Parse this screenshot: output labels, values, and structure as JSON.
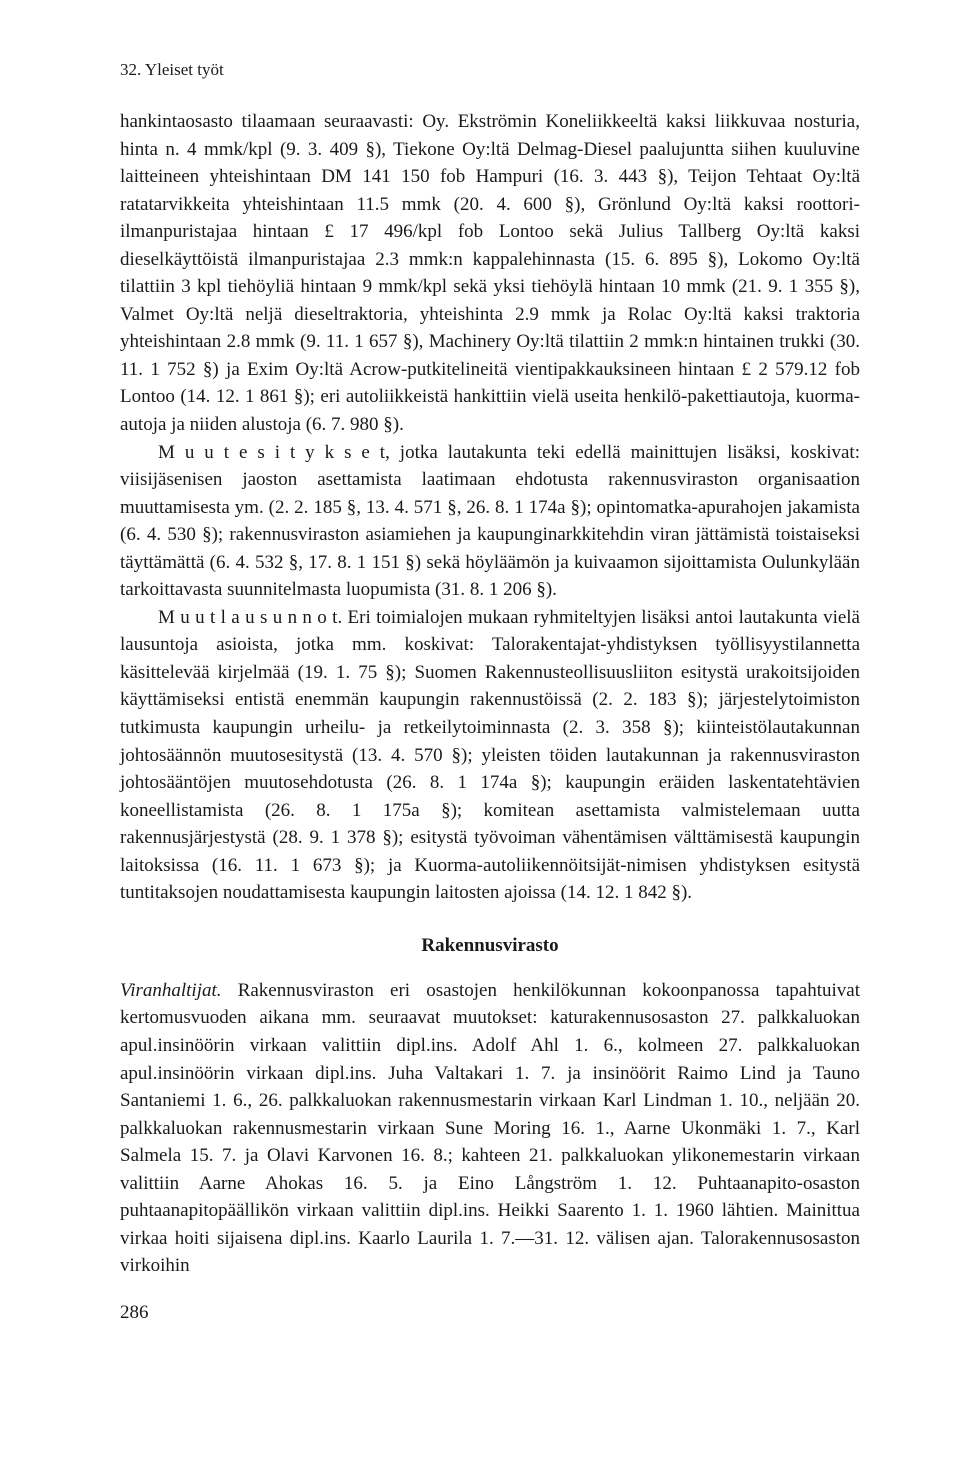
{
  "header": "32. Yleiset työt",
  "paragraphs": [
    "hankintaosasto tilaamaan seuraavasti: Oy. Ekströmin Koneliikkeeltä kaksi liikkuvaa nosturia, hinta n. 4 mmk/kpl (9. 3. 409 §), Tiekone Oy:ltä Delmag-Diesel paalujuntta siihen kuuluvine laitteineen yhteishintaan DM 141 150 fob Hampuri (16. 3. 443 §), Teijon Tehtaat Oy:ltä ratatarvikkeita yhteishintaan 11.5 mmk (20. 4. 600 §), Grönlund Oy:ltä kaksi roottori-ilmanpuristajaa hintaan £ 17 496/kpl fob Lontoo sekä Julius Tallberg Oy:ltä kaksi dieselkäyttöistä ilmanpuristajaa 2.3 mmk:n kappalehinnasta (15. 6. 895 §), Lokomo Oy:ltä tilattiin 3 kpl tiehöyliä hintaan 9 mmk/kpl sekä yksi tiehöylä hintaan 10 mmk (21. 9. 1 355 §), Valmet Oy:ltä neljä dieseltraktoria, yhteishinta 2.9 mmk ja Rolac Oy:ltä kaksi traktoria yhteishintaan 2.8 mmk (9. 11. 1 657 §), Machinery Oy:ltä tilattiin 2 mmk:n hintainen trukki (30. 11. 1 752 §) ja Exim Oy:ltä Acrow-putkitelineitä vientipakkauksineen hintaan £ 2 579.12 fob Lontoo (14. 12. 1 861 §); eri autoliikkeistä hankittiin vielä useita henkilö-pakettiautoja, kuorma-autoja ja niiden alustoja (6. 7. 980 §).",
    "M u u t  e s i t y k s e t, jotka lautakunta teki edellä mainittujen lisäksi, koskivat: viisijäsenisen jaoston asettamista laatimaan ehdotusta rakennusviraston organisaation muuttamisesta ym. (2. 2. 185 §, 13. 4. 571 §, 26. 8. 1 174a §); opintomatka-apurahojen jakamista (6. 4. 530 §); rakennusviraston asiamiehen ja kaupunginarkkitehdin viran jättämistä toistaiseksi täyttämättä (6. 4. 532 §, 17. 8. 1 151 §) sekä höyläämön ja kuivaamon sijoittamista Oulunkylään tarkoittavasta suunnitelmasta luopumista (31. 8. 1 206 §).",
    "M u u t  l a u s u n n o t. Eri toimialojen mukaan ryhmiteltyjen lisäksi antoi lautakunta vielä lausuntoja asioista, jotka mm. koskivat: Talorakentajat-yhdistyksen työllisyystilannetta käsittelevää kirjelmää (19. 1. 75 §); Suomen Rakennusteollisuusliiton esitystä urakoitsijoiden käyttämiseksi entistä enemmän kaupungin rakennustöissä (2. 2. 183 §); järjestelytoimiston tutkimusta kaupungin urheilu- ja retkeilytoiminnasta (2. 3. 358 §); kiinteistölautakunnan johtosäännön muutosesitystä (13. 4. 570 §); yleisten töiden lautakunnan ja rakennusviraston johtosääntöjen muutosehdotusta (26. 8. 1 174a §); kaupungin eräiden laskentatehtävien koneellistamista (26. 8. 1 175a §); komitean asettamista valmistelemaan uutta rakennusjärjestystä (28. 9. 1 378 §); esitystä työvoiman vähentämisen välttämisestä kaupungin laitoksissa (16. 11. 1 673 §); ja Kuorma-autoliikennöitsijät-nimisen yhdistyksen esitystä tuntitaksojen noudattamisesta kaupungin laitosten ajoissa (14. 12. 1 842 §)."
  ],
  "section_title": "Rakennusvirasto",
  "viranhaltijat_label": "Viranhaltijat.",
  "viranhaltijat_text": " Rakennusviraston eri osastojen henkilökunnan kokoonpanossa tapahtuivat kertomusvuoden aikana mm. seuraavat muutokset: katurakennusosaston 27. palkkaluokan apul.insinöörin virkaan valittiin dipl.ins. Adolf Ahl 1. 6., kolmeen 27. palkkaluokan apul.insinöörin virkaan dipl.ins. Juha Valtakari 1. 7. ja insinöörit Raimo Lind ja Tauno Santaniemi 1. 6., 26. palkkaluokan rakennusmestarin virkaan Karl Lindman 1. 10., neljään 20. palkkaluokan rakennusmestarin virkaan Sune Moring 16. 1., Aarne Ukonmäki 1. 7., Karl Salmela 15. 7. ja Olavi Karvonen 16. 8.; kahteen 21. palkkaluokan ylikonemestarin virkaan valittiin Aarne Ahokas 16. 5. ja Eino Långström 1. 12. Puhtaanapito-osaston puhtaanapitopäällikön virkaan valittiin dipl.ins. Heikki Saarento 1. 1. 1960 lähtien. Mainittua virkaa hoiti sijaisena dipl.ins. Kaarlo Laurila 1. 7.—31. 12. välisen ajan. Talorakennusosaston virkoihin",
  "page_number": "286"
}
